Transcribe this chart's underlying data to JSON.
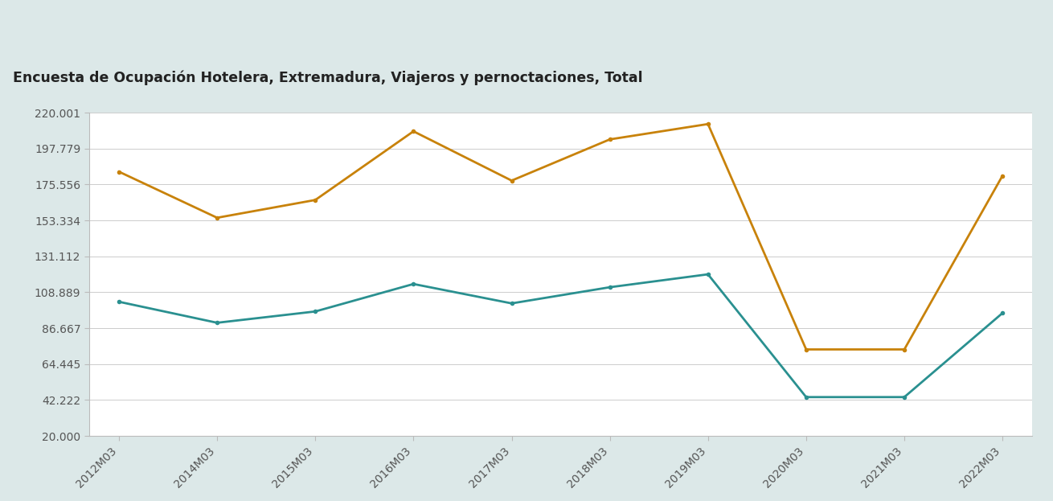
{
  "title": "Encuesta de Ocupación Hotelera, Extremadura, Viajeros y pernoctaciones, Total",
  "x_labels": [
    "2012M03",
    "2014M03",
    "2015M03",
    "2016M03",
    "2017M03",
    "2018M03",
    "2019M03",
    "2020M03",
    "2021M03",
    "2022M03"
  ],
  "x_positions": [
    0,
    1,
    2,
    3,
    4,
    5,
    6,
    7,
    8,
    9
  ],
  "pernoctaciones": [
    183500,
    155000,
    166000,
    208500,
    178000,
    203500,
    213000,
    73500,
    73500,
    181000
  ],
  "viajeros": [
    103000,
    90000,
    97000,
    114000,
    102000,
    112000,
    120000,
    44000,
    44000,
    96000
  ],
  "line_color_orange": "#C8820A",
  "line_color_teal": "#2A9090",
  "ylim_min": 20000,
  "ylim_max": 220001,
  "yticks": [
    20000,
    42222,
    64445,
    86667,
    108889,
    131112,
    153334,
    175556,
    197779,
    220001
  ],
  "ytick_labels": [
    "20.000",
    "42.222",
    "64.445",
    "86.667",
    "108.889",
    "131.112",
    "153.334",
    "175.556",
    "197.779",
    "220.001"
  ],
  "plot_bg_color": "#ffffff",
  "header_bg_color": "#adc8c8",
  "outer_bg_color": "#dce8e8",
  "top_bar_color": "#c8dada",
  "title_fontsize": 12.5,
  "tick_fontsize": 10,
  "line_width": 2.0,
  "marker_size": 4
}
